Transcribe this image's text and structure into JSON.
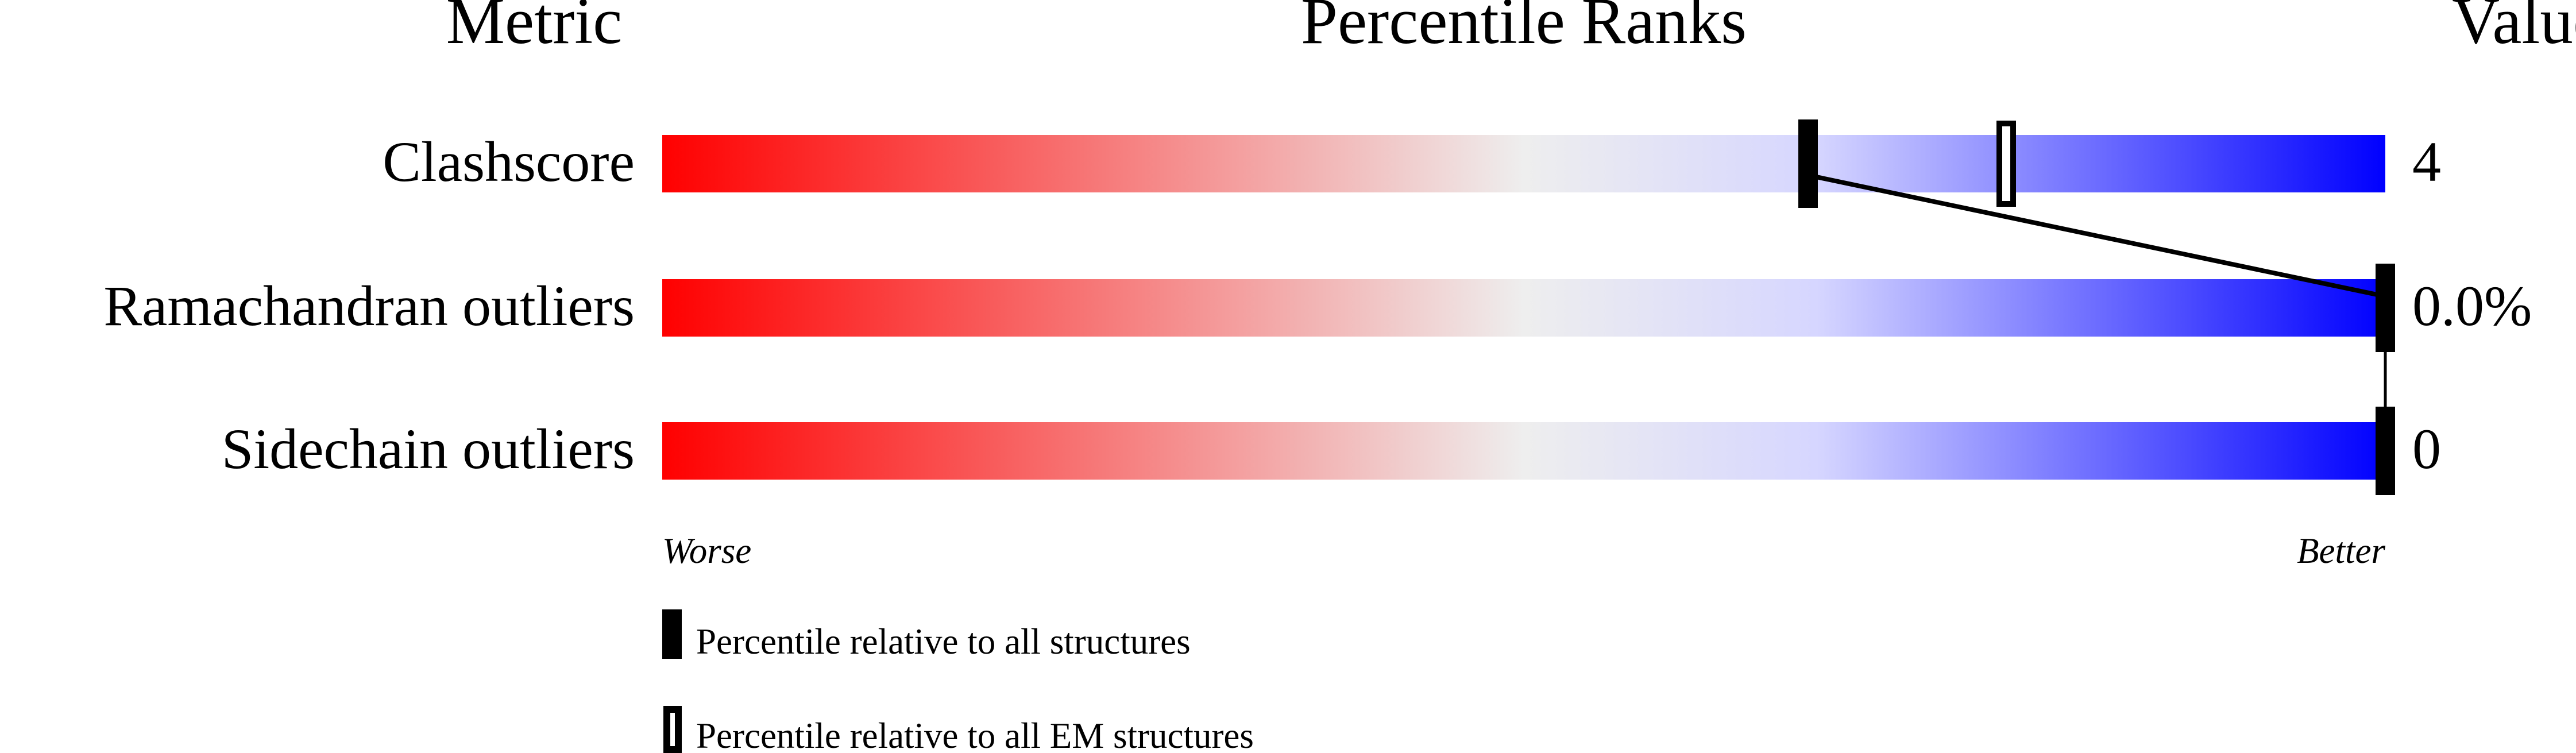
{
  "chart_data": {
    "type": "percentile-slider",
    "headers": {
      "metric": "Metric",
      "ranks": "Percentile Ranks",
      "value": "Value"
    },
    "xlim": [
      0,
      100
    ],
    "axis_labels": {
      "left": "Worse",
      "right": "Better"
    },
    "gradient_colors": [
      "#ff0000",
      "#eeeeee",
      "#d6d6ff",
      "#0000ff"
    ],
    "metrics": [
      {
        "name": "Clashscore",
        "value": "4",
        "percentile_all": 66.5,
        "percentile_em": 78
      },
      {
        "name": "Ramachandran outliers",
        "value": "0.0%",
        "percentile_all": 100,
        "percentile_em": null
      },
      {
        "name": "Sidechain outliers",
        "value": "0",
        "percentile_all": 100,
        "percentile_em": null
      }
    ],
    "legend": [
      {
        "marker": "filled",
        "label": "Percentile relative to all structures"
      },
      {
        "marker": "open",
        "label": "Percentile relative to all EM structures"
      }
    ]
  }
}
